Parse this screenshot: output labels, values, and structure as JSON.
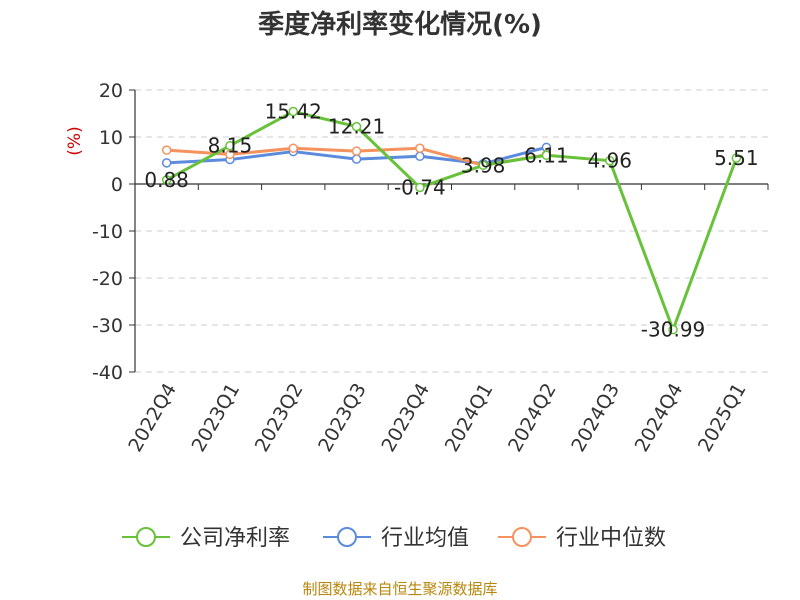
{
  "chart_data": {
    "type": "line",
    "title": "季度净利率变化情况(%)",
    "ylabel": "(%)",
    "xlabel": "",
    "categories": [
      "2022Q4",
      "2023Q1",
      "2023Q2",
      "2023Q3",
      "2023Q4",
      "2024Q1",
      "2024Q2",
      "2024Q3",
      "2024Q4",
      "2025Q1"
    ],
    "ylim": [
      -40,
      20
    ],
    "yticks": [
      20,
      10,
      0,
      -10,
      -20,
      -30,
      -40
    ],
    "grid": true,
    "legend_position": "bottom",
    "series": [
      {
        "name": "公司净利率",
        "color": "#67c23a",
        "values": [
          0.88,
          8.15,
          15.42,
          12.21,
          -0.74,
          3.98,
          6.11,
          4.96,
          -30.99,
          5.51
        ],
        "labels": [
          "0.88",
          "8.15",
          "15.42",
          "12.21",
          "-0.74",
          "3.98",
          "6.11",
          "4.96",
          "-30.99",
          "5.51"
        ]
      },
      {
        "name": "行业均值",
        "color": "#5b8bdc",
        "values": [
          4.5,
          5.2,
          6.9,
          5.3,
          5.9,
          4.3,
          7.8,
          null,
          null,
          null
        ]
      },
      {
        "name": "行业中位数",
        "color": "#f5925e",
        "values": [
          7.2,
          6.3,
          7.6,
          7.0,
          7.6,
          4.0,
          6.2,
          null,
          null,
          null
        ]
      }
    ]
  },
  "source": "制图数据来自恒生聚源数据库"
}
